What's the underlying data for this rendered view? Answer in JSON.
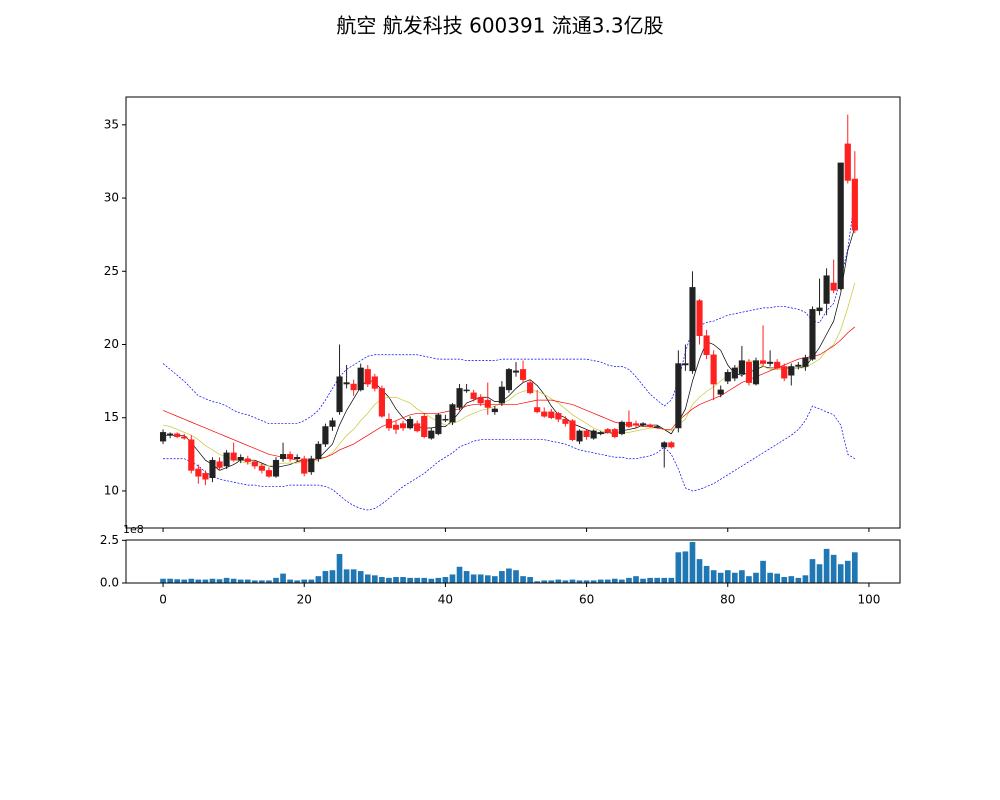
{
  "title": "航空 航发科技 600391 流通3.3亿股",
  "chart_data": [
    {
      "type": "candlestick",
      "open": [
        13.4,
        13.8,
        13.9,
        13.7,
        13.5,
        11.5,
        11.2,
        10.9,
        12.0,
        11.7,
        12.6,
        12.1,
        12.2,
        12.0,
        11.7,
        11.4,
        11.0,
        12.2,
        12.5,
        12.2,
        12.2,
        11.3,
        12.2,
        13.2,
        14.4,
        15.4,
        17.3,
        17.3,
        16.9,
        18.3,
        17.8,
        17.0,
        14.9,
        14.5,
        14.6,
        14.3,
        14.6,
        15.1,
        13.6,
        13.9,
        14.9,
        14.7,
        15.7,
        16.9,
        16.7,
        16.4,
        16.2,
        15.4,
        16.0,
        16.9,
        18.1,
        18.3,
        17.4,
        15.7,
        15.4,
        15.4,
        15.3,
        14.9,
        14.8,
        13.4,
        14.1,
        13.6,
        13.9,
        14.2,
        14.2,
        13.9,
        14.7,
        14.6,
        14.5,
        14.5,
        14.4,
        13.0,
        13.3,
        14.3,
        18.6,
        18.2,
        23.0,
        20.6,
        19.3,
        16.6,
        17.5,
        17.7,
        18.0,
        18.8,
        17.3,
        18.9,
        18.7,
        18.8,
        18.5,
        17.9,
        18.5,
        18.5,
        19.0,
        22.3,
        22.8,
        24.2,
        23.8,
        33.7,
        31.3
      ],
      "high": [
        14.2,
        14.0,
        14.0,
        13.9,
        13.8,
        11.8,
        11.4,
        12.3,
        12.3,
        12.8,
        13.3,
        12.5,
        12.4,
        12.1,
        11.9,
        11.6,
        12.3,
        13.3,
        12.7,
        12.5,
        12.4,
        12.4,
        13.4,
        14.6,
        15.0,
        20.0,
        18.6,
        17.6,
        18.7,
        18.6,
        18.0,
        17.2,
        15.3,
        14.8,
        14.8,
        15.1,
        14.8,
        15.3,
        14.3,
        15.3,
        15.2,
        16.0,
        17.3,
        17.3,
        16.9,
        16.6,
        17.4,
        15.8,
        17.5,
        18.4,
        18.8,
        18.9,
        17.6,
        16.9,
        15.7,
        15.6,
        15.4,
        15.1,
        14.9,
        14.2,
        14.2,
        14.2,
        14.1,
        14.3,
        14.3,
        14.8,
        15.5,
        14.8,
        14.7,
        14.6,
        14.5,
        13.4,
        13.4,
        19.6,
        20.0,
        25.0,
        23.1,
        21.0,
        19.6,
        17.2,
        18.3,
        18.6,
        19.9,
        19.0,
        19.1,
        21.3,
        19.6,
        19.0,
        18.7,
        18.7,
        18.8,
        19.3,
        22.6,
        24.5,
        25.2,
        25.8,
        32.4,
        35.7,
        33.2
      ],
      "low": [
        13.2,
        13.6,
        13.6,
        13.5,
        11.2,
        10.5,
        10.4,
        10.6,
        11.4,
        11.5,
        12.0,
        11.9,
        11.8,
        11.5,
        11.2,
        10.9,
        10.9,
        12.0,
        12.0,
        12.0,
        11.0,
        11.1,
        12.0,
        13.0,
        14.1,
        15.2,
        17.0,
        16.5,
        16.8,
        17.1,
        16.8,
        15.0,
        14.1,
        13.9,
        14.1,
        14.2,
        14.0,
        13.6,
        13.5,
        13.8,
        14.7,
        14.5,
        15.5,
        16.7,
        16.1,
        15.8,
        15.2,
        15.2,
        15.8,
        16.7,
        17.8,
        17.4,
        16.6,
        15.3,
        15.0,
        14.9,
        14.7,
        14.4,
        13.4,
        13.2,
        13.5,
        13.5,
        13.8,
        13.9,
        13.6,
        13.8,
        14.3,
        14.3,
        14.4,
        14.3,
        14.3,
        11.6,
        12.9,
        14.0,
        18.2,
        18.0,
        20.0,
        19.0,
        16.2,
        16.4,
        17.3,
        17.5,
        17.8,
        17.2,
        17.2,
        18.5,
        18.5,
        18.3,
        17.5,
        17.2,
        18.3,
        18.2,
        18.9,
        22.0,
        22.0,
        23.5,
        23.7,
        31.0,
        27.6
      ],
      "close": [
        14.0,
        13.9,
        13.7,
        13.6,
        11.4,
        11.0,
        10.8,
        12.1,
        11.6,
        12.6,
        12.1,
        12.3,
        12.0,
        11.7,
        11.4,
        11.0,
        12.1,
        12.5,
        12.2,
        12.3,
        11.2,
        12.2,
        13.2,
        14.4,
        14.8,
        17.8,
        17.4,
        16.9,
        18.4,
        17.3,
        17.0,
        15.1,
        14.3,
        14.2,
        14.3,
        14.9,
        14.1,
        13.7,
        14.1,
        15.2,
        14.9,
        15.9,
        17.0,
        16.9,
        16.3,
        16.0,
        15.7,
        15.6,
        17.1,
        18.3,
        18.2,
        17.6,
        16.7,
        15.4,
        15.1,
        15.0,
        14.9,
        14.6,
        13.5,
        14.1,
        13.7,
        14.1,
        14.0,
        14.0,
        13.7,
        14.7,
        14.4,
        14.5,
        14.6,
        14.4,
        14.4,
        13.3,
        13.0,
        18.7,
        18.7,
        23.9,
        20.6,
        19.3,
        17.3,
        16.9,
        18.1,
        18.4,
        18.9,
        17.4,
        18.9,
        18.7,
        18.8,
        18.4,
        17.7,
        18.5,
        18.6,
        19.1,
        22.4,
        22.5,
        24.7,
        23.7,
        32.4,
        31.2,
        27.8
      ],
      "up_color": "#222222",
      "down_color": "#ff2020",
      "series": [
        {
          "color": "#000000",
          "linestyle": "solid",
          "values": [
            13.8,
            13.8,
            13.8,
            13.8,
            13.3,
            12.7,
            12.1,
            11.8,
            11.4,
            11.6,
            11.8,
            12.1,
            12.1,
            12.1,
            11.9,
            11.7,
            11.6,
            11.7,
            11.8,
            12.0,
            12.1,
            12.1,
            12.2,
            12.7,
            13.2,
            14.5,
            15.5,
            16.3,
            17.1,
            17.6,
            17.4,
            16.9,
            16.4,
            15.6,
            15.0,
            14.6,
            14.4,
            14.3,
            14.3,
            14.4,
            14.4,
            14.8,
            15.4,
            16.0,
            16.2,
            16.4,
            16.4,
            16.1,
            16.1,
            16.5,
            17.0,
            17.4,
            17.6,
            17.2,
            16.6,
            15.8,
            15.2,
            15.0,
            14.6,
            14.4,
            14.2,
            14.0,
            13.9,
            14.0,
            13.9,
            14.1,
            14.2,
            14.3,
            14.5,
            14.5,
            14.5,
            14.2,
            13.9,
            14.7,
            15.6,
            17.5,
            19.0,
            20.2,
            20.0,
            19.6,
            18.6,
            18.0,
            17.9,
            18.1,
            18.3,
            18.5,
            18.4,
            18.4,
            18.4,
            18.4,
            18.4,
            18.5,
            19.1,
            19.8,
            20.7,
            21.6,
            23.5,
            26.4,
            28.0
          ]
        },
        {
          "color": "#c8c832",
          "linestyle": "solid",
          "values": [
            14.5,
            14.4,
            14.2,
            14.0,
            13.8,
            13.5,
            13.1,
            12.8,
            12.5,
            12.3,
            12.2,
            12.0,
            11.9,
            11.9,
            11.8,
            11.7,
            11.8,
            11.9,
            11.9,
            11.9,
            12.0,
            12.0,
            12.1,
            12.3,
            12.6,
            13.2,
            13.8,
            14.2,
            14.8,
            15.3,
            15.9,
            16.3,
            16.4,
            16.4,
            16.2,
            16.0,
            15.6,
            15.3,
            15.0,
            14.7,
            14.5,
            14.6,
            14.8,
            15.1,
            15.3,
            15.5,
            15.6,
            15.8,
            16.0,
            16.2,
            16.6,
            16.8,
            16.9,
            16.8,
            16.6,
            16.3,
            16.0,
            15.6,
            15.2,
            14.9,
            14.6,
            14.3,
            14.1,
            14.0,
            14.0,
            14.0,
            14.0,
            14.1,
            14.2,
            14.3,
            14.3,
            14.2,
            14.1,
            14.5,
            14.9,
            15.9,
            16.4,
            16.8,
            17.1,
            17.5,
            17.9,
            18.3,
            18.7,
            18.9,
            18.8,
            18.5,
            18.3,
            18.3,
            18.3,
            18.4,
            18.4,
            18.4,
            18.7,
            19.0,
            19.6,
            20.0,
            21.0,
            22.5,
            24.2
          ]
        },
        {
          "color": "#ff0000",
          "linestyle": "solid",
          "values": [
            15.5,
            15.3,
            15.1,
            14.9,
            14.7,
            14.5,
            14.3,
            14.1,
            13.9,
            13.7,
            13.5,
            13.3,
            13.1,
            12.9,
            12.7,
            12.5,
            12.4,
            12.3,
            12.2,
            12.1,
            12.1,
            12.1,
            12.2,
            12.3,
            12.5,
            12.8,
            13.0,
            13.2,
            13.5,
            13.8,
            14.1,
            14.4,
            14.6,
            14.8,
            15.0,
            15.2,
            15.3,
            15.3,
            15.3,
            15.3,
            15.4,
            15.5,
            15.6,
            15.8,
            15.9,
            15.9,
            15.9,
            15.9,
            15.9,
            15.9,
            15.9,
            16.0,
            16.1,
            16.2,
            16.2,
            16.2,
            16.1,
            16.0,
            15.9,
            15.7,
            15.5,
            15.3,
            15.1,
            14.9,
            14.7,
            14.6,
            14.5,
            14.5,
            14.4,
            14.4,
            14.3,
            14.2,
            14.2,
            14.8,
            15.2,
            15.6,
            15.9,
            16.1,
            16.3,
            16.5,
            16.8,
            17.1,
            17.4,
            17.6,
            17.8,
            18.0,
            18.2,
            18.4,
            18.6,
            18.8,
            19.0,
            19.1,
            19.2,
            19.3,
            19.6,
            19.9,
            20.3,
            20.8,
            21.2
          ]
        },
        {
          "color": "#0000ff",
          "linestyle": "dashed",
          "values": [
            18.7,
            18.3,
            17.9,
            17.5,
            17.0,
            16.5,
            16.3,
            16.1,
            16.0,
            15.8,
            15.5,
            15.3,
            15.2,
            15.0,
            14.8,
            14.6,
            14.6,
            14.6,
            14.6,
            14.6,
            14.8,
            15.1,
            15.5,
            16.2,
            17.0,
            17.8,
            18.3,
            18.6,
            18.9,
            19.2,
            19.3,
            19.3,
            19.3,
            19.3,
            19.3,
            19.3,
            19.3,
            19.2,
            19.1,
            19.0,
            19.0,
            19.0,
            19.0,
            18.9,
            18.9,
            18.9,
            18.9,
            18.9,
            19.0,
            19.0,
            19.0,
            19.0,
            19.0,
            19.0,
            19.0,
            19.0,
            19.0,
            19.0,
            19.0,
            19.0,
            19.0,
            18.9,
            18.8,
            18.6,
            18.5,
            18.5,
            18.3,
            17.8,
            17.2,
            16.6,
            16.2,
            15.8,
            16.2,
            17.5,
            19.5,
            21.0,
            21.3,
            21.5,
            21.6,
            21.8,
            22.0,
            22.1,
            22.2,
            22.3,
            22.4,
            22.5,
            22.5,
            22.6,
            22.6,
            22.5,
            22.4,
            22.2,
            21.6,
            21.5,
            22.3,
            22.8,
            24.5,
            26.5,
            30.0
          ]
        },
        {
          "color": "#0000ff",
          "linestyle": "dashed",
          "values": [
            12.2,
            12.2,
            12.2,
            12.2,
            12.0,
            11.7,
            11.3,
            11.0,
            10.8,
            10.7,
            10.6,
            10.5,
            10.4,
            10.4,
            10.3,
            10.3,
            10.3,
            10.3,
            10.4,
            10.4,
            10.4,
            10.4,
            10.4,
            10.3,
            10.1,
            9.7,
            9.3,
            9.0,
            8.8,
            8.7,
            8.8,
            9.1,
            9.5,
            9.9,
            10.3,
            10.6,
            10.9,
            11.2,
            11.6,
            12.0,
            12.3,
            12.6,
            13.0,
            13.2,
            13.4,
            13.5,
            13.5,
            13.5,
            13.5,
            13.5,
            13.5,
            13.5,
            13.5,
            13.5,
            13.5,
            13.4,
            13.3,
            13.2,
            13.0,
            12.8,
            12.7,
            12.6,
            12.5,
            12.4,
            12.3,
            12.3,
            12.2,
            12.2,
            12.3,
            12.4,
            12.6,
            13.0,
            12.5,
            11.5,
            10.2,
            10.0,
            10.1,
            10.3,
            10.5,
            10.8,
            11.1,
            11.4,
            11.7,
            12.0,
            12.3,
            12.6,
            12.9,
            13.2,
            13.5,
            13.8,
            14.2,
            14.8,
            15.8,
            15.6,
            15.4,
            15.2,
            14.5,
            12.5,
            12.2
          ]
        }
      ],
      "xlim": [
        -5.25,
        104.4
      ],
      "xticks": [
        0,
        20,
        40,
        60,
        80,
        100
      ],
      "ylim": [
        7.47,
        36.9
      ],
      "yticks": [
        10,
        15,
        20,
        25,
        30,
        35
      ]
    },
    {
      "type": "bar",
      "color": "#1f77b4",
      "values": [
        0.25,
        0.25,
        0.22,
        0.2,
        0.25,
        0.2,
        0.2,
        0.25,
        0.22,
        0.3,
        0.25,
        0.2,
        0.2,
        0.15,
        0.15,
        0.15,
        0.3,
        0.55,
        0.2,
        0.15,
        0.2,
        0.2,
        0.4,
        0.7,
        0.75,
        1.7,
        0.8,
        0.8,
        0.7,
        0.5,
        0.45,
        0.35,
        0.3,
        0.35,
        0.35,
        0.3,
        0.3,
        0.3,
        0.25,
        0.3,
        0.35,
        0.5,
        0.95,
        0.7,
        0.5,
        0.5,
        0.45,
        0.4,
        0.7,
        0.85,
        0.75,
        0.4,
        0.35,
        0.1,
        0.15,
        0.15,
        0.2,
        0.15,
        0.2,
        0.15,
        0.15,
        0.15,
        0.2,
        0.2,
        0.25,
        0.2,
        0.3,
        0.4,
        0.25,
        0.3,
        0.3,
        0.3,
        0.3,
        1.8,
        1.85,
        2.4,
        1.4,
        1.0,
        0.75,
        0.6,
        0.75,
        0.6,
        0.75,
        0.4,
        0.6,
        1.3,
        0.6,
        0.55,
        0.35,
        0.4,
        0.3,
        0.45,
        1.4,
        1.1,
        2.0,
        1.65,
        1.1,
        1.3,
        1.8
      ],
      "xlim": [
        -5.25,
        104.4
      ],
      "xticks": [
        0,
        20,
        40,
        60,
        80,
        100
      ],
      "ylim": [
        0,
        2.52
      ],
      "yticks": [
        {
          "value": 0,
          "label": "0.0"
        },
        {
          "value": 2.5,
          "label": "2.5"
        }
      ],
      "offset_text": "1e8"
    }
  ]
}
